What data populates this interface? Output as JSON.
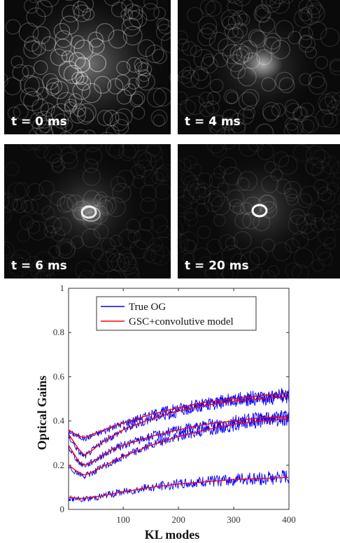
{
  "panels": [
    {
      "label": "t = 0 ms",
      "core": 0.0,
      "ring": 0.0
    },
    {
      "label": "t = 4 ms",
      "core": 0.55,
      "ring": 0.0
    },
    {
      "label": "t = 6 ms",
      "core": 0.35,
      "ring": 0.85
    },
    {
      "label": "t = 20 ms",
      "core": 0.0,
      "ring": 1.0
    }
  ],
  "chart_data": {
    "type": "line",
    "xlabel": "KL modes",
    "ylabel": "Optical Gains",
    "xlim": [
      1,
      400
    ],
    "ylim": [
      0,
      1
    ],
    "xticks": [
      100,
      200,
      300,
      400
    ],
    "yticks": [
      0,
      0.2,
      0.4,
      0.6,
      0.8,
      1
    ],
    "yticklabels": [
      "0",
      "0.2",
      "0.4",
      "0.6",
      "0.8",
      "1"
    ],
    "legend": {
      "placement": "top-left",
      "entries": [
        {
          "label": "True OG",
          "color": "#0000ff"
        },
        {
          "label": "GSC+convolutive model",
          "color": "#ff0000"
        }
      ]
    },
    "series": [
      {
        "name": "True OG",
        "color": "#0000ff",
        "x": [
          1,
          20,
          30,
          40,
          60,
          80,
          100,
          150,
          200,
          250,
          300,
          350,
          400
        ],
        "curves": [
          [
            0.35,
            0.33,
            0.32,
            0.33,
            0.35,
            0.37,
            0.39,
            0.43,
            0.46,
            0.48,
            0.5,
            0.51,
            0.52
          ],
          [
            0.33,
            0.26,
            0.24,
            0.26,
            0.3,
            0.33,
            0.36,
            0.41,
            0.44,
            0.47,
            0.49,
            0.5,
            0.51
          ],
          [
            0.28,
            0.21,
            0.2,
            0.21,
            0.24,
            0.27,
            0.29,
            0.33,
            0.36,
            0.38,
            0.4,
            0.41,
            0.42
          ],
          [
            0.19,
            0.16,
            0.15,
            0.16,
            0.19,
            0.21,
            0.24,
            0.29,
            0.33,
            0.36,
            0.38,
            0.4,
            0.41
          ],
          [
            0.05,
            0.045,
            0.045,
            0.05,
            0.06,
            0.07,
            0.08,
            0.1,
            0.115,
            0.125,
            0.135,
            0.14,
            0.145
          ]
        ]
      },
      {
        "name": "GSC+convolutive model",
        "color": "#ff0000",
        "x": [
          1,
          20,
          30,
          40,
          60,
          80,
          100,
          150,
          200,
          250,
          300,
          350,
          400
        ],
        "curves": [
          [
            0.36,
            0.33,
            0.325,
            0.335,
            0.355,
            0.375,
            0.39,
            0.43,
            0.46,
            0.485,
            0.5,
            0.515,
            0.525
          ],
          [
            0.34,
            0.27,
            0.245,
            0.26,
            0.3,
            0.33,
            0.36,
            0.41,
            0.445,
            0.47,
            0.49,
            0.5,
            0.51
          ],
          [
            0.29,
            0.215,
            0.2,
            0.21,
            0.24,
            0.27,
            0.29,
            0.33,
            0.36,
            0.385,
            0.4,
            0.415,
            0.42
          ],
          [
            0.2,
            0.165,
            0.155,
            0.165,
            0.19,
            0.215,
            0.24,
            0.29,
            0.33,
            0.36,
            0.385,
            0.4,
            0.41
          ],
          [
            0.055,
            0.05,
            0.05,
            0.055,
            0.06,
            0.07,
            0.08,
            0.1,
            0.115,
            0.125,
            0.135,
            0.14,
            0.145
          ]
        ]
      }
    ]
  }
}
